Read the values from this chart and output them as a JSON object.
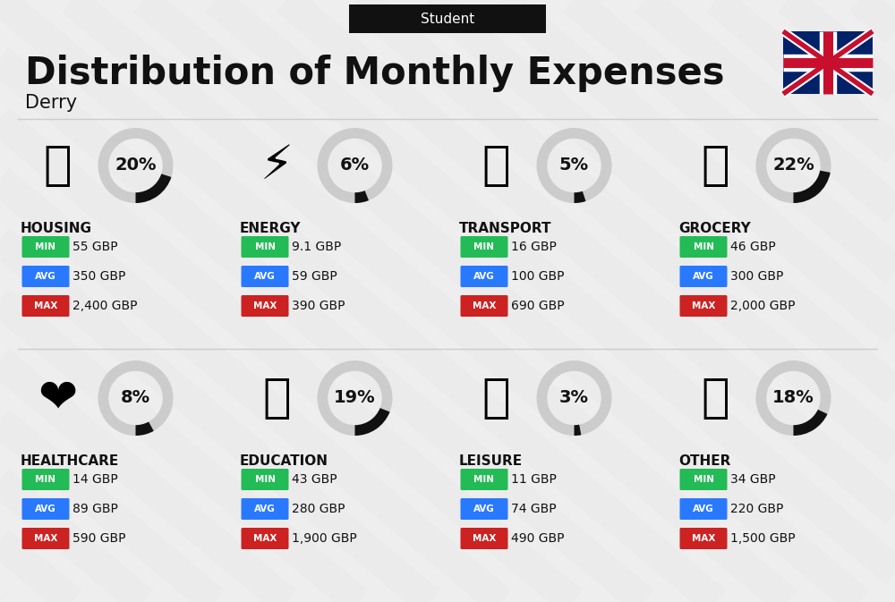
{
  "title": "Distribution of Monthly Expenses",
  "subtitle": "Student",
  "city": "Derry",
  "bg_color": "#eeeeee",
  "categories": [
    {
      "name": "HOUSING",
      "pct": 20,
      "min": "55 GBP",
      "avg": "350 GBP",
      "max": "2,400 GBP",
      "icon": "🏢",
      "row": 0,
      "col": 0
    },
    {
      "name": "ENERGY",
      "pct": 6,
      "min": "9.1 GBP",
      "avg": "59 GBP",
      "max": "390 GBP",
      "icon": "⚡",
      "row": 0,
      "col": 1
    },
    {
      "name": "TRANSPORT",
      "pct": 5,
      "min": "16 GBP",
      "avg": "100 GBP",
      "max": "690 GBP",
      "icon": "🚌",
      "row": 0,
      "col": 2
    },
    {
      "name": "GROCERY",
      "pct": 22,
      "min": "46 GBP",
      "avg": "300 GBP",
      "max": "2,000 GBP",
      "icon": "🛒",
      "row": 0,
      "col": 3
    },
    {
      "name": "HEALTHCARE",
      "pct": 8,
      "min": "14 GBP",
      "avg": "89 GBP",
      "max": "590 GBP",
      "icon": "❤",
      "row": 1,
      "col": 0
    },
    {
      "name": "EDUCATION",
      "pct": 19,
      "min": "43 GBP",
      "avg": "280 GBP",
      "max": "1,900 GBP",
      "icon": "🎓",
      "row": 1,
      "col": 1
    },
    {
      "name": "LEISURE",
      "pct": 3,
      "min": "11 GBP",
      "avg": "74 GBP",
      "max": "490 GBP",
      "icon": "🛍",
      "row": 1,
      "col": 2
    },
    {
      "name": "OTHER",
      "pct": 18,
      "min": "34 GBP",
      "avg": "220 GBP",
      "max": "1,500 GBP",
      "icon": "💰",
      "row": 1,
      "col": 3
    }
  ],
  "min_color": "#22bb55",
  "avg_color": "#2979ff",
  "max_color": "#cc2222",
  "text_color": "#111111",
  "circle_bg": "#cccccc",
  "circle_fg": "#111111"
}
